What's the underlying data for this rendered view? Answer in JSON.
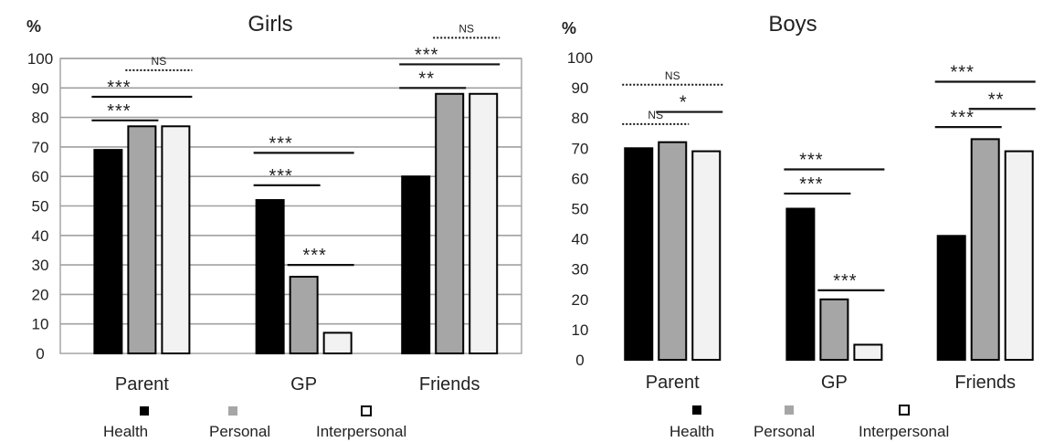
{
  "chart_data": [
    {
      "type": "bar",
      "title": "Girls",
      "ylabel": "%",
      "ylim": [
        0,
        100
      ],
      "yticks": [
        "0",
        "10",
        "20",
        "30",
        "40",
        "50",
        "60",
        "70",
        "80",
        "90",
        "100"
      ],
      "categories": [
        "Parent",
        "GP",
        "Friends"
      ],
      "grid": "horizontal",
      "legend_placement": "bottom",
      "series": [
        {
          "name": "Health",
          "values": [
            69,
            52,
            60
          ]
        },
        {
          "name": "Personal",
          "values": [
            77,
            26,
            88
          ]
        },
        {
          "name": "Interpersonal",
          "values": [
            77,
            7,
            88
          ]
        }
      ],
      "significance": [
        {
          "category": "Parent",
          "from": 0,
          "to": 1,
          "level": 79,
          "label": "***",
          "style": "solid"
        },
        {
          "category": "Parent",
          "from": 0,
          "to": 2,
          "level": 87,
          "label": "***",
          "style": "solid"
        },
        {
          "category": "Parent",
          "from": 1,
          "to": 2,
          "level": 96,
          "label": "NS",
          "style": "dotted"
        },
        {
          "category": "GP",
          "from": 0,
          "to": 1,
          "level": 57,
          "label": "***",
          "style": "solid"
        },
        {
          "category": "GP",
          "from": 0,
          "to": 2,
          "level": 68,
          "label": "***",
          "style": "solid"
        },
        {
          "category": "GP",
          "from": 1,
          "to": 2,
          "level": 30,
          "label": "***",
          "style": "solid"
        },
        {
          "category": "Friends",
          "from": 0,
          "to": 1,
          "level": 90,
          "label": "**",
          "style": "solid"
        },
        {
          "category": "Friends",
          "from": 0,
          "to": 2,
          "level": 98,
          "label": "***",
          "style": "solid"
        },
        {
          "category": "Friends",
          "from": 1,
          "to": 2,
          "level": 107,
          "label": "NS",
          "style": "dotted"
        }
      ]
    },
    {
      "type": "bar",
      "title": "Boys",
      "ylabel": "%",
      "ylim": [
        0,
        100
      ],
      "yticks": [
        "0",
        "10",
        "20",
        "30",
        "40",
        "50",
        "60",
        "70",
        "80",
        "90",
        "100"
      ],
      "categories": [
        "Parent",
        "GP",
        "Friends"
      ],
      "grid": "none",
      "legend_placement": "bottom",
      "series": [
        {
          "name": "Health",
          "values": [
            70,
            50,
            41
          ]
        },
        {
          "name": "Personal",
          "values": [
            72,
            20,
            73
          ]
        },
        {
          "name": "Interpersonal",
          "values": [
            69,
            5,
            69
          ]
        }
      ],
      "significance": [
        {
          "category": "Parent",
          "from": 0,
          "to": 1,
          "level": 78,
          "label": "NS",
          "style": "dotted"
        },
        {
          "category": "Parent",
          "from": 0,
          "to": 2,
          "level": 91,
          "label": "NS",
          "style": "dotted"
        },
        {
          "category": "Parent",
          "from": 1,
          "to": 2,
          "level": 82,
          "label": "*",
          "style": "solid"
        },
        {
          "category": "GP",
          "from": 0,
          "to": 1,
          "level": 55,
          "label": "***",
          "style": "solid"
        },
        {
          "category": "GP",
          "from": 0,
          "to": 2,
          "level": 63,
          "label": "***",
          "style": "solid"
        },
        {
          "category": "GP",
          "from": 1,
          "to": 2,
          "level": 23,
          "label": "***",
          "style": "solid"
        },
        {
          "category": "Friends",
          "from": 0,
          "to": 1,
          "level": 77,
          "label": "***",
          "style": "solid"
        },
        {
          "category": "Friends",
          "from": 0,
          "to": 2,
          "level": 92,
          "label": "***",
          "style": "solid"
        },
        {
          "category": "Friends",
          "from": 1,
          "to": 2,
          "level": 83,
          "label": "**",
          "style": "solid"
        }
      ]
    }
  ],
  "colors": {
    "Health": "#000000",
    "Personal": "#a6a6a6",
    "Interpersonal": "#f2f2f2",
    "grid": "#a0a0a0",
    "bar_outline": "#000000"
  }
}
